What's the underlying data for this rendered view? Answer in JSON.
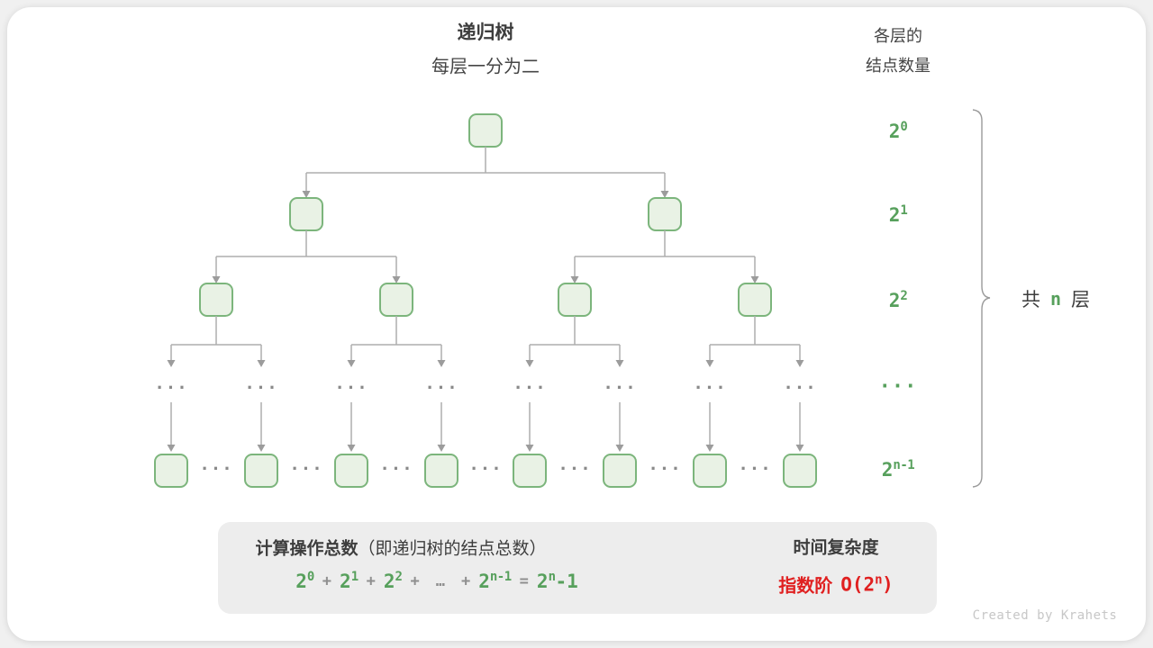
{
  "header": {
    "title": "递归树",
    "subtitle": "每层一分为二",
    "right_title_line1": "各层的",
    "right_title_line2": "结点数量"
  },
  "levels": [
    {
      "base": "2",
      "exp": "0"
    },
    {
      "base": "2",
      "exp": "1"
    },
    {
      "base": "2",
      "exp": "2"
    },
    {
      "dots": "···"
    },
    {
      "base": "2",
      "exp": "n-1"
    }
  ],
  "brace_label": {
    "pre": "共",
    "n": "n",
    "post": "层"
  },
  "tree": {
    "ellipsis": "···"
  },
  "summary_box": {
    "title_bold": "计算操作总数",
    "title_paren": "（即递归树的结点总数）",
    "formula": {
      "t0b": "2",
      "t0e": "0",
      "op1": "+",
      "t1b": "2",
      "t1e": "1",
      "op2": "+",
      "t2b": "2",
      "t2e": "2",
      "op3": "+",
      "dots": "…",
      "op4": "+",
      "t3b": "2",
      "t3e": "n-1",
      "eq": "=",
      "t4b": "2",
      "t4e": "n",
      "tail": "-1"
    },
    "result": {
      "title": "时间复杂度",
      "label": "指数阶",
      "o_prefix": "O(2",
      "o_exp": "n",
      "o_suffix": ")"
    }
  },
  "watermark": "Created by Krahets",
  "colors": {
    "green_text": "#57a05c",
    "node_fill": "#e9f2e5",
    "node_border": "#7cb57c",
    "connector": "#aeaeae",
    "red_accent": "#e02020",
    "summary_bg": "#ededed"
  }
}
